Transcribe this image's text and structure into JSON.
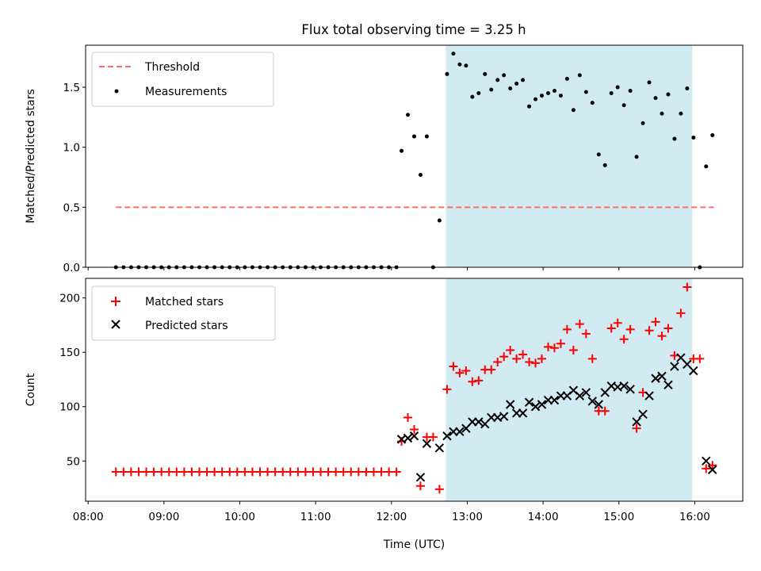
{
  "chart_data": [
    {
      "type": "scatter",
      "title": "Flux total observing time = 3.25 h",
      "xlabel": "",
      "ylabel": "Matched/Predicted stars",
      "ylim": [
        0,
        1.85
      ],
      "yticks": [
        0.0,
        0.5,
        1.0,
        1.5
      ],
      "ytick_labels": [
        "0.0",
        "0.5",
        "1.0",
        "1.5"
      ],
      "legend": {
        "position": "top-left"
      },
      "shaded_span": {
        "x": [
          "12:43",
          "15:58"
        ],
        "color": "#add8e6"
      },
      "series": [
        {
          "name": "Threshold",
          "kind": "dashed-line",
          "color": "#ff6b6b",
          "x": [
            "08:22",
            "16:15"
          ],
          "y": [
            0.5,
            0.5
          ]
        },
        {
          "name": "Measurements",
          "kind": "points",
          "color": "#000000",
          "points": [
            [
              "08:22",
              0
            ],
            [
              "08:28",
              0
            ],
            [
              "08:34",
              0
            ],
            [
              "08:40",
              0
            ],
            [
              "08:46",
              0
            ],
            [
              "08:52",
              0
            ],
            [
              "08:58",
              0
            ],
            [
              "09:04",
              0
            ],
            [
              "09:10",
              0
            ],
            [
              "09:16",
              0
            ],
            [
              "09:22",
              0
            ],
            [
              "09:28",
              0
            ],
            [
              "09:34",
              0
            ],
            [
              "09:40",
              0
            ],
            [
              "09:46",
              0
            ],
            [
              "09:52",
              0
            ],
            [
              "09:58",
              0
            ],
            [
              "10:04",
              0
            ],
            [
              "10:10",
              0
            ],
            [
              "10:16",
              0
            ],
            [
              "10:22",
              0
            ],
            [
              "10:28",
              0
            ],
            [
              "10:34",
              0
            ],
            [
              "10:40",
              0
            ],
            [
              "10:46",
              0
            ],
            [
              "10:52",
              0
            ],
            [
              "10:58",
              0
            ],
            [
              "11:04",
              0
            ],
            [
              "11:10",
              0
            ],
            [
              "11:16",
              0
            ],
            [
              "11:22",
              0
            ],
            [
              "11:28",
              0
            ],
            [
              "11:34",
              0
            ],
            [
              "11:40",
              0
            ],
            [
              "11:46",
              0
            ],
            [
              "11:52",
              0
            ],
            [
              "11:58",
              0
            ],
            [
              "12:04",
              0
            ],
            [
              "12:08",
              0.97
            ],
            [
              "12:13",
              1.27
            ],
            [
              "12:18",
              1.09
            ],
            [
              "12:23",
              0.77
            ],
            [
              "12:28",
              1.09
            ],
            [
              "12:33",
              0
            ],
            [
              "12:38",
              0.39
            ],
            [
              "12:44",
              1.61
            ],
            [
              "12:49",
              1.78
            ],
            [
              "12:54",
              1.69
            ],
            [
              "12:59",
              1.68
            ],
            [
              "13:04",
              1.42
            ],
            [
              "13:09",
              1.45
            ],
            [
              "13:14",
              1.61
            ],
            [
              "13:19",
              1.48
            ],
            [
              "13:24",
              1.56
            ],
            [
              "13:29",
              1.6
            ],
            [
              "13:34",
              1.49
            ],
            [
              "13:39",
              1.53
            ],
            [
              "13:44",
              1.56
            ],
            [
              "13:49",
              1.34
            ],
            [
              "13:54",
              1.4
            ],
            [
              "13:59",
              1.43
            ],
            [
              "14:04",
              1.45
            ],
            [
              "14:09",
              1.47
            ],
            [
              "14:14",
              1.43
            ],
            [
              "14:19",
              1.57
            ],
            [
              "14:24",
              1.31
            ],
            [
              "14:29",
              1.6
            ],
            [
              "14:34",
              1.46
            ],
            [
              "14:39",
              1.37
            ],
            [
              "14:44",
              0.94
            ],
            [
              "14:49",
              0.85
            ],
            [
              "14:54",
              1.45
            ],
            [
              "14:59",
              1.5
            ],
            [
              "15:04",
              1.35
            ],
            [
              "15:09",
              1.47
            ],
            [
              "15:14",
              0.92
            ],
            [
              "15:19",
              1.2
            ],
            [
              "15:24",
              1.54
            ],
            [
              "15:29",
              1.41
            ],
            [
              "15:34",
              1.28
            ],
            [
              "15:39",
              1.44
            ],
            [
              "15:44",
              1.07
            ],
            [
              "15:49",
              1.28
            ],
            [
              "15:54",
              1.49
            ],
            [
              "15:59",
              1.08
            ],
            [
              "16:04",
              0
            ],
            [
              "16:09",
              0.84
            ],
            [
              "16:14",
              1.1
            ]
          ]
        }
      ]
    },
    {
      "type": "scatter",
      "title": "",
      "xlabel": "Time (UTC)",
      "ylabel": "Count",
      "ylim": [
        13,
        218
      ],
      "yticks": [
        50,
        100,
        150,
        200
      ],
      "ytick_labels": [
        "50",
        "100",
        "150",
        "200"
      ],
      "xticks": [
        "08:00",
        "09:00",
        "10:00",
        "11:00",
        "12:00",
        "13:00",
        "14:00",
        "15:00",
        "16:00"
      ],
      "xlim": [
        "07:58",
        "16:38"
      ],
      "legend": {
        "position": "top-left"
      },
      "shaded_span": {
        "x": [
          "12:43",
          "15:58"
        ],
        "color": "#add8e6"
      },
      "series": [
        {
          "name": "Matched stars",
          "kind": "plus",
          "color": "#ff0000",
          "points": [
            [
              "08:22",
              40
            ],
            [
              "08:28",
              40
            ],
            [
              "08:34",
              40
            ],
            [
              "08:40",
              40
            ],
            [
              "08:46",
              40
            ],
            [
              "08:52",
              40
            ],
            [
              "08:58",
              40
            ],
            [
              "09:04",
              40
            ],
            [
              "09:10",
              40
            ],
            [
              "09:16",
              40
            ],
            [
              "09:22",
              40
            ],
            [
              "09:28",
              40
            ],
            [
              "09:34",
              40
            ],
            [
              "09:40",
              40
            ],
            [
              "09:46",
              40
            ],
            [
              "09:52",
              40
            ],
            [
              "09:58",
              40
            ],
            [
              "10:04",
              40
            ],
            [
              "10:10",
              40
            ],
            [
              "10:16",
              40
            ],
            [
              "10:22",
              40
            ],
            [
              "10:28",
              40
            ],
            [
              "10:34",
              40
            ],
            [
              "10:40",
              40
            ],
            [
              "10:46",
              40
            ],
            [
              "10:52",
              40
            ],
            [
              "10:58",
              40
            ],
            [
              "11:04",
              40
            ],
            [
              "11:10",
              40
            ],
            [
              "11:16",
              40
            ],
            [
              "11:22",
              40
            ],
            [
              "11:28",
              40
            ],
            [
              "11:34",
              40
            ],
            [
              "11:40",
              40
            ],
            [
              "11:46",
              40
            ],
            [
              "11:52",
              40
            ],
            [
              "11:58",
              40
            ],
            [
              "12:04",
              40
            ],
            [
              "12:08",
              68
            ],
            [
              "12:13",
              90
            ],
            [
              "12:18",
              79
            ],
            [
              "12:23",
              27
            ],
            [
              "12:28",
              72
            ],
            [
              "12:33",
              72
            ],
            [
              "12:38",
              24
            ],
            [
              "12:44",
              116
            ],
            [
              "12:49",
              137
            ],
            [
              "12:54",
              131
            ],
            [
              "12:59",
              133
            ],
            [
              "13:04",
              123
            ],
            [
              "13:09",
              124
            ],
            [
              "13:14",
              134
            ],
            [
              "13:19",
              134
            ],
            [
              "13:24",
              141
            ],
            [
              "13:29",
              146
            ],
            [
              "13:34",
              152
            ],
            [
              "13:39",
              144
            ],
            [
              "13:44",
              148
            ],
            [
              "13:49",
              141
            ],
            [
              "13:54",
              140
            ],
            [
              "13:59",
              144
            ],
            [
              "14:04",
              155
            ],
            [
              "14:09",
              154
            ],
            [
              "14:14",
              158
            ],
            [
              "14:19",
              171
            ],
            [
              "14:24",
              152
            ],
            [
              "14:29",
              176
            ],
            [
              "14:34",
              167
            ],
            [
              "14:39",
              144
            ],
            [
              "14:44",
              96
            ],
            [
              "14:49",
              96
            ],
            [
              "14:54",
              172
            ],
            [
              "14:59",
              177
            ],
            [
              "15:04",
              162
            ],
            [
              "15:09",
              171
            ],
            [
              "15:14",
              80
            ],
            [
              "15:19",
              113
            ],
            [
              "15:24",
              170
            ],
            [
              "15:29",
              178
            ],
            [
              "15:34",
              165
            ],
            [
              "15:39",
              172
            ],
            [
              "15:44",
              147
            ],
            [
              "15:49",
              186
            ],
            [
              "15:54",
              210
            ],
            [
              "15:59",
              144
            ],
            [
              "16:04",
              144
            ],
            [
              "16:09",
              43
            ],
            [
              "16:14",
              46
            ]
          ]
        },
        {
          "name": "Predicted stars",
          "kind": "cross",
          "color": "#000000",
          "points": [
            [
              "12:08",
              70
            ],
            [
              "12:13",
              71
            ],
            [
              "12:18",
              73
            ],
            [
              "12:23",
              35
            ],
            [
              "12:28",
              66
            ],
            [
              "12:38",
              62
            ],
            [
              "12:44",
              73
            ],
            [
              "12:49",
              77
            ],
            [
              "12:54",
              77
            ],
            [
              "12:59",
              80
            ],
            [
              "13:04",
              86
            ],
            [
              "13:09",
              86
            ],
            [
              "13:14",
              84
            ],
            [
              "13:19",
              90
            ],
            [
              "13:24",
              90
            ],
            [
              "13:29",
              91
            ],
            [
              "13:34",
              102
            ],
            [
              "13:39",
              94
            ],
            [
              "13:44",
              94
            ],
            [
              "13:49",
              104
            ],
            [
              "13:54",
              100
            ],
            [
              "13:59",
              102
            ],
            [
              "14:04",
              106
            ],
            [
              "14:09",
              106
            ],
            [
              "14:14",
              110
            ],
            [
              "14:19",
              110
            ],
            [
              "14:24",
              115
            ],
            [
              "14:29",
              110
            ],
            [
              "14:34",
              113
            ],
            [
              "14:39",
              105
            ],
            [
              "14:44",
              102
            ],
            [
              "14:49",
              113
            ],
            [
              "14:54",
              119
            ],
            [
              "14:59",
              118
            ],
            [
              "15:04",
              119
            ],
            [
              "15:09",
              116
            ],
            [
              "15:14",
              86
            ],
            [
              "15:19",
              93
            ],
            [
              "15:24",
              110
            ],
            [
              "15:29",
              126
            ],
            [
              "15:34",
              128
            ],
            [
              "15:39",
              120
            ],
            [
              "15:44",
              137
            ],
            [
              "15:49",
              145
            ],
            [
              "15:54",
              139
            ],
            [
              "15:59",
              133
            ],
            [
              "16:09",
              50
            ],
            [
              "16:14",
              42
            ]
          ]
        }
      ]
    }
  ]
}
